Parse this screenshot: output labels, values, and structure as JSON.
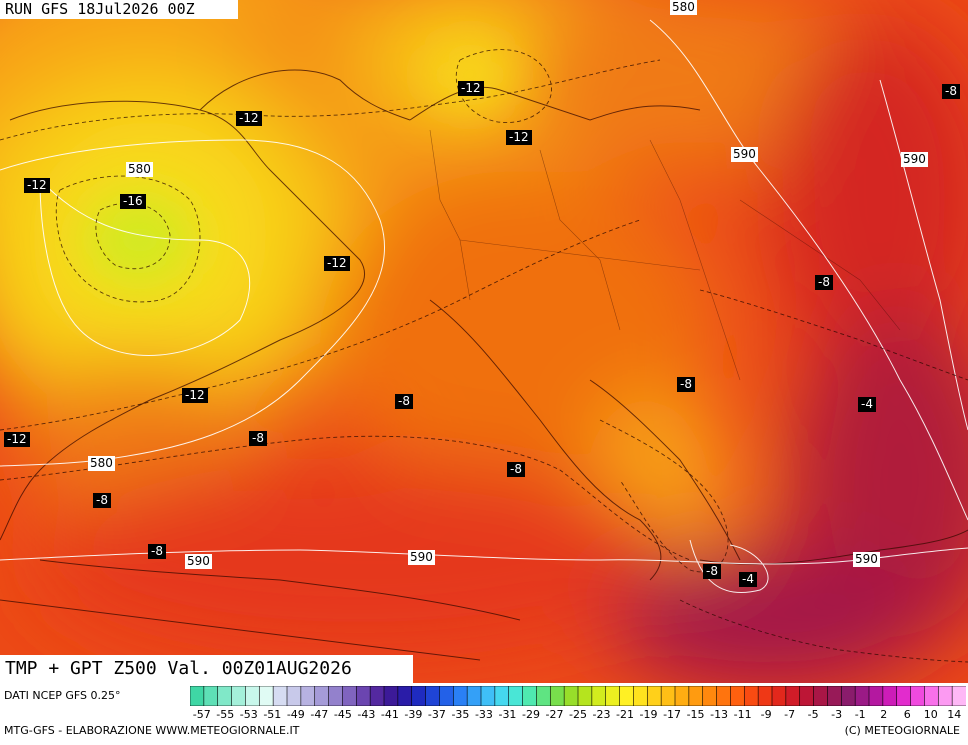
{
  "header": {
    "run": "RUN GFS 18Jul2026 00Z"
  },
  "title": "TMP + GPT Z500 Val. 00Z01AUG2026",
  "footer": {
    "source": "DATI NCEP GFS 0.25°",
    "credit_left": "MTG-GFS - ELABORAZIONE WWW.METEOGIORNALE.IT",
    "credit_right": "(C) METEOGIORNALE"
  },
  "temperature_labels": [
    "-12",
    "-12",
    "-12",
    "-12",
    "-16",
    "-12",
    "-12",
    "-12",
    "-8",
    "-8",
    "-8",
    "-8",
    "-8",
    "-8",
    "-8",
    "-8",
    "-4",
    "-4",
    "-8"
  ],
  "gpt_labels": [
    "580",
    "580",
    "580",
    "590",
    "590",
    "590",
    "590",
    "590"
  ],
  "legend": {
    "tick_labels": [
      "-57",
      "-55",
      "-53",
      "-51",
      "-49",
      "-47",
      "-45",
      "-43",
      "-41",
      "-39",
      "-37",
      "-35",
      "-33",
      "-31",
      "-29",
      "-27",
      "-25",
      "-23",
      "-21",
      "-19",
      "-17",
      "-15",
      "-13",
      "-11",
      "-9",
      "-7",
      "-5",
      "-3",
      "-1",
      "2",
      "6",
      "10",
      "14"
    ],
    "colors": [
      "#3fd7a5",
      "#5ee0b6",
      "#80e8c8",
      "#a4f0da",
      "#c8f7eb",
      "#e0fbf4",
      "#d6dcf2",
      "#c8c9ea",
      "#b7b2e1",
      "#a59bd8",
      "#9381cc",
      "#8064bf",
      "#6b45b0",
      "#5429a0",
      "#3c1a98",
      "#2a1ca8",
      "#1f2bc0",
      "#1f44d6",
      "#2361e8",
      "#2a80f5",
      "#34a0f7",
      "#3fbff7",
      "#45d8ef",
      "#49e6d6",
      "#4fe9b0",
      "#5fe482",
      "#78df4c",
      "#98de2a",
      "#b5e41e",
      "#d2ec1e",
      "#ecf020",
      "#fff024",
      "#ffe21e",
      "#ffd01a",
      "#ffbf16",
      "#ffad12",
      "#ff9b10",
      "#ff880e",
      "#ff740e",
      "#ff600f",
      "#f94b12",
      "#ef3816",
      "#e2281c",
      "#d11c28",
      "#bd1636",
      "#a91646",
      "#981a58",
      "#8a1c6c",
      "#9b1a86",
      "#b418a0",
      "#cd1cb8",
      "#e22ccd",
      "#f04ade",
      "#f870ea",
      "#fc9af2",
      "#feb8f6"
    ]
  }
}
